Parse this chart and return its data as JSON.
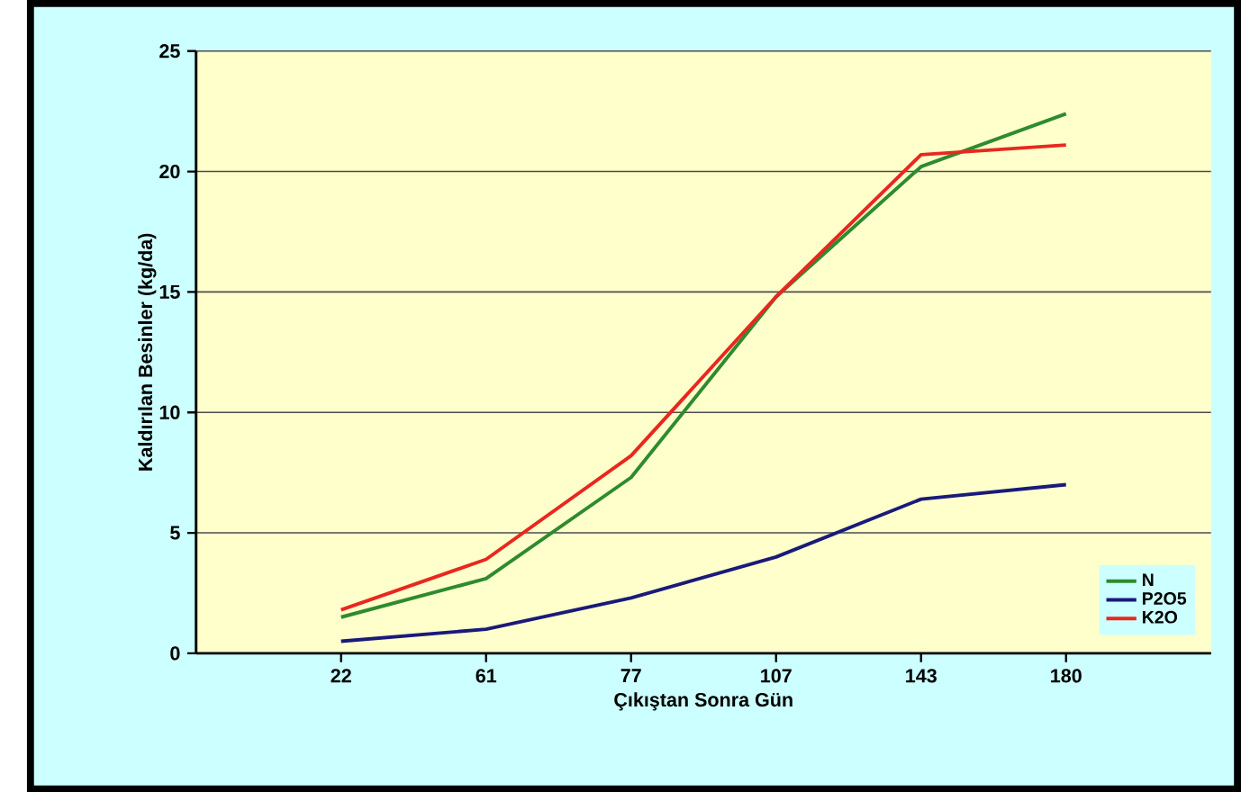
{
  "chart_data": {
    "type": "line",
    "xlabel": "Çıkıştan Sonra Gün",
    "ylabel": "Kaldırılan Besinler (kg/da)",
    "categories": [
      "22",
      "61",
      "77",
      "107",
      "143",
      "180"
    ],
    "series": [
      {
        "name": "N",
        "color": "#2e8b2e",
        "values": [
          1.5,
          3.1,
          7.3,
          14.8,
          20.2,
          22.4
        ]
      },
      {
        "name": "P2O5",
        "color": "#1a1a7a",
        "values": [
          0.5,
          1.0,
          2.3,
          4.0,
          6.4,
          7.0
        ]
      },
      {
        "name": "K2O",
        "color": "#e8281e",
        "values": [
          1.8,
          3.9,
          8.2,
          14.8,
          20.7,
          21.1
        ]
      }
    ],
    "ylim": [
      0,
      25
    ],
    "yticks": [
      0,
      5,
      10,
      15,
      20,
      25
    ],
    "grid": "y",
    "legend": "bottom right"
  }
}
